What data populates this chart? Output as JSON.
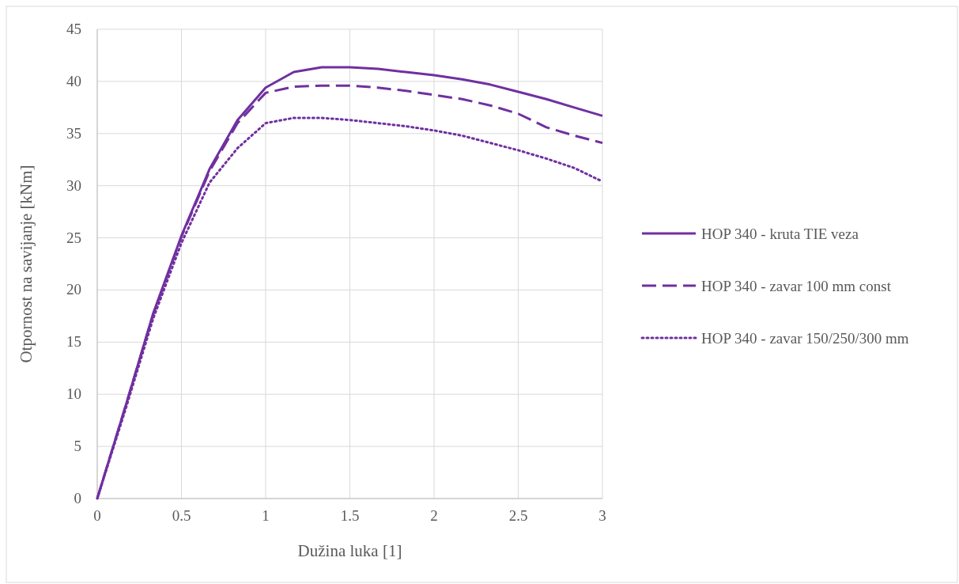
{
  "chart_data": {
    "type": "line",
    "xlabel": "Dužina luka [1]",
    "ylabel": "Otpornost na savijanje [kNm]",
    "x": [
      0,
      0.167,
      0.333,
      0.5,
      0.667,
      0.833,
      1,
      1.167,
      1.333,
      1.5,
      1.667,
      1.833,
      2,
      2.167,
      2.333,
      2.5,
      2.667,
      2.833,
      3
    ],
    "series": [
      {
        "name": "HOP 340 - kruta TIE veza",
        "color": "#7030a0",
        "line_style": "solid",
        "values": [
          0,
          8.8,
          17.8,
          25.2,
          31.6,
          36.3,
          39.4,
          40.9,
          41.35,
          41.35,
          41.2,
          40.9,
          40.6,
          40.2,
          39.7,
          39,
          38.3,
          37.5,
          36.7
        ]
      },
      {
        "name": "HOP 340 - zavar 100 mm const",
        "color": "#7030a0",
        "line_style": "dashed",
        "values": [
          0,
          8.8,
          17.7,
          25.1,
          31.4,
          36,
          38.9,
          39.5,
          39.6,
          39.6,
          39.4,
          39.1,
          38.7,
          38.3,
          37.7,
          36.9,
          35.6,
          34.8,
          34.1
        ]
      },
      {
        "name": "HOP 340 - zavar 150/250/300 mm",
        "color": "#7030a0",
        "line_style": "dotted",
        "values": [
          0,
          8.5,
          17.3,
          24.5,
          30.3,
          33.6,
          36,
          36.5,
          36.5,
          36.3,
          36,
          35.7,
          35.3,
          34.8,
          34.1,
          33.4,
          32.6,
          31.7,
          30.4
        ]
      }
    ],
    "xlim": [
      0,
      3
    ],
    "xticks": [
      0,
      0.5,
      1,
      1.5,
      2,
      2.5,
      3
    ],
    "ylim": [
      0,
      45
    ],
    "yticks": [
      0,
      5,
      10,
      15,
      20,
      25,
      30,
      35,
      40,
      45
    ],
    "grid": true,
    "legend": "right"
  }
}
